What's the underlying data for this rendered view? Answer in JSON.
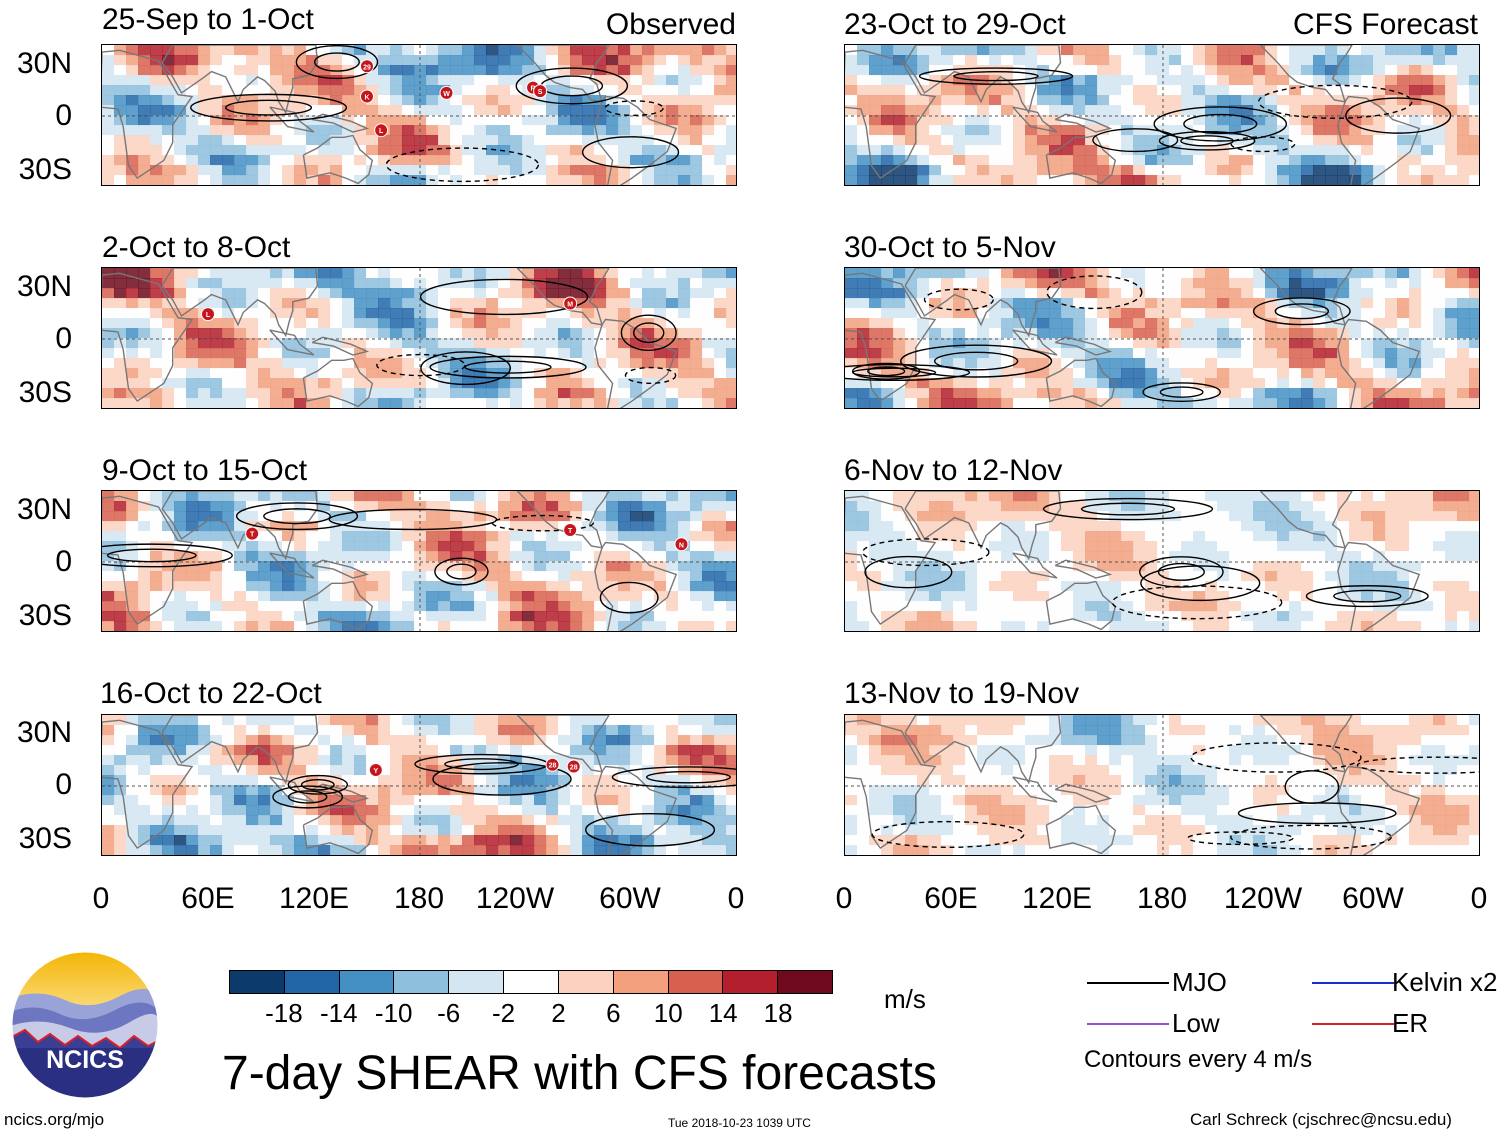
{
  "panels": [
    {
      "id": "p1",
      "title": "25-Sep to 1-Oct",
      "right_title": "Observed"
    },
    {
      "id": "p2",
      "title": "2-Oct to 8-Oct",
      "right_title": ""
    },
    {
      "id": "p3",
      "title": "9-Oct to 15-Oct",
      "right_title": ""
    },
    {
      "id": "p4",
      "title": "16-Oct to 22-Oct",
      "right_title": ""
    },
    {
      "id": "p5",
      "title": "23-Oct to 29-Oct",
      "right_title": "CFS Forecast"
    },
    {
      "id": "p6",
      "title": "30-Oct to 5-Nov",
      "right_title": ""
    },
    {
      "id": "p7",
      "title": "6-Nov to 12-Nov",
      "right_title": ""
    },
    {
      "id": "p8",
      "title": "13-Nov to 19-Nov",
      "right_title": ""
    }
  ],
  "lat_labels": [
    "30N",
    "0",
    "30S"
  ],
  "lon_labels": [
    "0",
    "60E",
    "120E",
    "180",
    "120W",
    "60W",
    "0"
  ],
  "colorbar": {
    "ticks": [
      "-18",
      "-14",
      "-10",
      "-6",
      "-2",
      "2",
      "6",
      "10",
      "14",
      "18"
    ],
    "colors": [
      "#0b3a6b",
      "#2266a8",
      "#4490c4",
      "#8ec0de",
      "#d3e6f2",
      "#ffffff",
      "#fbd2bf",
      "#f2a07e",
      "#d8604f",
      "#b31f2c",
      "#6e0a1c"
    ],
    "units": "m/s"
  },
  "title": "7-day SHEAR with CFS forecasts",
  "legend": {
    "mjo": "MJO",
    "kelvin": "Kelvin x2",
    "low": "Low",
    "er": "ER",
    "note": "Contours every 4 m/s",
    "colors": {
      "mjo": "#000000",
      "kelvin": "#1a2ccc",
      "low": "#9b4fd6",
      "er": "#d92020"
    }
  },
  "logo": {
    "text": "NCICS"
  },
  "footer": {
    "left": "ncics.org/mjo",
    "center": "Tue 2018-10-23 1039 UTC",
    "right": "Carl Schreck (cjschrec@ncsu.edu)"
  },
  "storm_markers": {
    "p1": [
      "29",
      "K",
      "L",
      "W",
      "R",
      "S"
    ],
    "p2": [
      "L",
      "M"
    ],
    "p3": [
      "T",
      "T",
      "N"
    ],
    "p4": [
      "Y",
      "28",
      "28"
    ]
  }
}
